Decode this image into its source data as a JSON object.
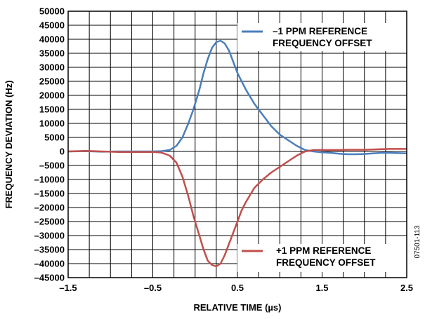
{
  "chart_data": {
    "type": "line",
    "xlabel": "RELATIVE TIME (µs)",
    "ylabel": "FREQUENCY DEVIATION (Hz)",
    "xlim": [
      -1.5,
      2.5
    ],
    "ylim": [
      -45000,
      50000
    ],
    "x_ticks": [
      -1.5,
      -0.5,
      0.5,
      1.5,
      2.5
    ],
    "x_tick_labels": [
      "–1.5",
      "–0.5",
      "0.5",
      "1.5",
      "2.5"
    ],
    "y_ticks": [
      50000,
      45000,
      40000,
      35000,
      30000,
      25000,
      20000,
      15000,
      10000,
      5000,
      0,
      -5000,
      -10000,
      -15000,
      -20000,
      -25000,
      -30000,
      -35000,
      -40000,
      -45000
    ],
    "y_tick_labels": [
      "50000",
      "45000",
      "40000",
      "35000",
      "30000",
      "25000",
      "20000",
      "15000",
      "10000",
      "5000",
      "0",
      "–5000",
      "–10000",
      "–15000",
      "–20000",
      "–25000",
      "–30000",
      "–35000",
      "–40000",
      "–45000"
    ],
    "grid": true,
    "figure_id": "07501-113",
    "series": [
      {
        "name": "–1 PPM REFERENCE FREQUENCY OFFSET",
        "legend_lines": [
          "–1 PPM REFERENCE",
          "FREQUENCY OFFSET"
        ],
        "legend_position": "top-right",
        "color": "#4a7ebb",
        "points": [
          [
            -1.5,
            0
          ],
          [
            -1.3,
            100
          ],
          [
            -1.1,
            -100
          ],
          [
            -0.9,
            0
          ],
          [
            -0.7,
            0
          ],
          [
            -0.5,
            0
          ],
          [
            -0.4,
            100
          ],
          [
            -0.3,
            500
          ],
          [
            -0.22,
            2000
          ],
          [
            -0.15,
            5000
          ],
          [
            -0.08,
            10000
          ],
          [
            -0.02,
            15000
          ],
          [
            0.05,
            22000
          ],
          [
            0.1,
            28000
          ],
          [
            0.15,
            33000
          ],
          [
            0.2,
            37000
          ],
          [
            0.25,
            39000
          ],
          [
            0.3,
            39500
          ],
          [
            0.35,
            38500
          ],
          [
            0.4,
            36000
          ],
          [
            0.45,
            32000
          ],
          [
            0.5,
            28000
          ],
          [
            0.55,
            25000
          ],
          [
            0.6,
            22000
          ],
          [
            0.7,
            17000
          ],
          [
            0.8,
            13000
          ],
          [
            0.9,
            9000
          ],
          [
            1.0,
            6000
          ],
          [
            1.1,
            4000
          ],
          [
            1.2,
            2000
          ],
          [
            1.3,
            500
          ],
          [
            1.4,
            0
          ],
          [
            1.5,
            -300
          ],
          [
            1.6,
            -500
          ],
          [
            1.7,
            -800
          ],
          [
            1.8,
            -1000
          ],
          [
            1.9,
            -1000
          ],
          [
            2.0,
            -900
          ],
          [
            2.1,
            -700
          ],
          [
            2.2,
            -500
          ],
          [
            2.3,
            -500
          ],
          [
            2.4,
            -600
          ],
          [
            2.5,
            -700
          ]
        ]
      },
      {
        "name": "+1 PPM REFERENCE FREQUENCY OFFSET",
        "legend_lines": [
          "+1 PPM REFERENCE",
          "FREQUENCY OFFSET"
        ],
        "legend_position": "bottom-right",
        "color": "#c0504d",
        "points": [
          [
            -1.5,
            0
          ],
          [
            -1.3,
            200
          ],
          [
            -1.1,
            0
          ],
          [
            -0.9,
            -200
          ],
          [
            -0.7,
            -200
          ],
          [
            -0.5,
            -200
          ],
          [
            -0.4,
            -400
          ],
          [
            -0.3,
            -1500
          ],
          [
            -0.22,
            -4000
          ],
          [
            -0.15,
            -9000
          ],
          [
            -0.08,
            -16000
          ],
          [
            -0.02,
            -23000
          ],
          [
            0.05,
            -30000
          ],
          [
            0.1,
            -35000
          ],
          [
            0.15,
            -39000
          ],
          [
            0.2,
            -40500
          ],
          [
            0.25,
            -41000
          ],
          [
            0.3,
            -40000
          ],
          [
            0.35,
            -37000
          ],
          [
            0.4,
            -33000
          ],
          [
            0.45,
            -29000
          ],
          [
            0.5,
            -25000
          ],
          [
            0.55,
            -21000
          ],
          [
            0.6,
            -18000
          ],
          [
            0.7,
            -13000
          ],
          [
            0.8,
            -10000
          ],
          [
            0.9,
            -7500
          ],
          [
            1.0,
            -5500
          ],
          [
            1.1,
            -3500
          ],
          [
            1.2,
            -1500
          ],
          [
            1.3,
            0
          ],
          [
            1.4,
            500
          ],
          [
            1.5,
            500
          ],
          [
            1.6,
            500
          ],
          [
            1.7,
            500
          ],
          [
            1.8,
            600
          ],
          [
            1.9,
            600
          ],
          [
            2.0,
            600
          ],
          [
            2.1,
            700
          ],
          [
            2.2,
            800
          ],
          [
            2.3,
            900
          ],
          [
            2.4,
            900
          ],
          [
            2.5,
            900
          ]
        ]
      }
    ]
  }
}
